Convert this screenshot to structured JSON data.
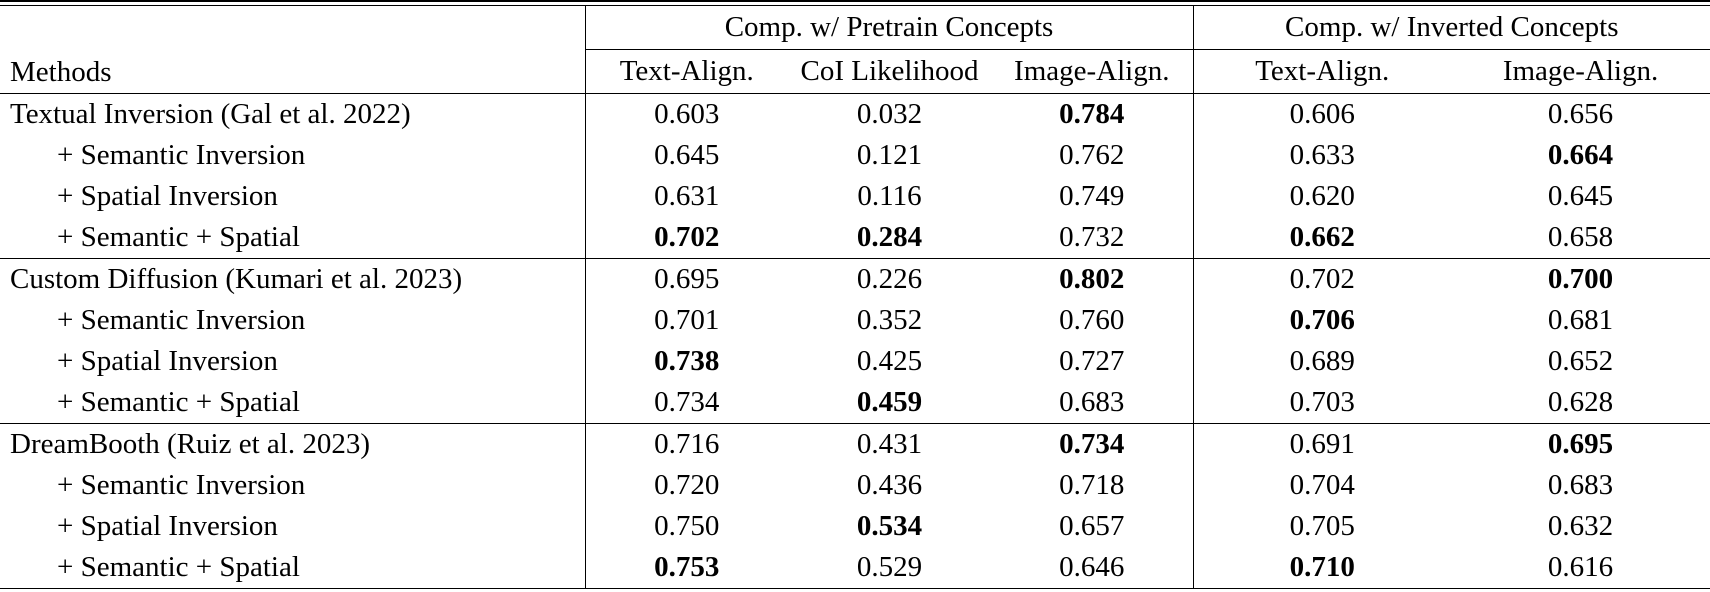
{
  "table": {
    "header": {
      "methods_label": "Methods",
      "groups": [
        {
          "label": "Comp. w/ Pretrain Concepts",
          "columns": [
            "Text-Align.",
            "CoI Likelihood",
            "Image-Align."
          ]
        },
        {
          "label": "Comp. w/ Inverted Concepts",
          "columns": [
            "Text-Align.",
            "Image-Align."
          ]
        }
      ]
    },
    "body": [
      {
        "rows": [
          {
            "method": "Textual Inversion (Gal et al. 2022)",
            "indent": false,
            "cells": [
              {
                "value": "0.603",
                "bold": false
              },
              {
                "value": "0.032",
                "bold": false
              },
              {
                "value": "0.784",
                "bold": true
              },
              {
                "value": "0.606",
                "bold": false
              },
              {
                "value": "0.656",
                "bold": false
              }
            ]
          },
          {
            "method": "+ Semantic Inversion",
            "indent": true,
            "cells": [
              {
                "value": "0.645",
                "bold": false
              },
              {
                "value": "0.121",
                "bold": false
              },
              {
                "value": "0.762",
                "bold": false
              },
              {
                "value": "0.633",
                "bold": false
              },
              {
                "value": "0.664",
                "bold": true
              }
            ]
          },
          {
            "method": "+ Spatial Inversion",
            "indent": true,
            "cells": [
              {
                "value": "0.631",
                "bold": false
              },
              {
                "value": "0.116",
                "bold": false
              },
              {
                "value": "0.749",
                "bold": false
              },
              {
                "value": "0.620",
                "bold": false
              },
              {
                "value": "0.645",
                "bold": false
              }
            ]
          },
          {
            "method": "+ Semantic + Spatial",
            "indent": true,
            "cells": [
              {
                "value": "0.702",
                "bold": true
              },
              {
                "value": "0.284",
                "bold": true
              },
              {
                "value": "0.732",
                "bold": false
              },
              {
                "value": "0.662",
                "bold": true
              },
              {
                "value": "0.658",
                "bold": false
              }
            ]
          }
        ]
      },
      {
        "rows": [
          {
            "method": "Custom Diffusion (Kumari et al. 2023)",
            "indent": false,
            "cells": [
              {
                "value": "0.695",
                "bold": false
              },
              {
                "value": "0.226",
                "bold": false
              },
              {
                "value": "0.802",
                "bold": true
              },
              {
                "value": "0.702",
                "bold": false
              },
              {
                "value": "0.700",
                "bold": true
              }
            ]
          },
          {
            "method": "+ Semantic Inversion",
            "indent": true,
            "cells": [
              {
                "value": "0.701",
                "bold": false
              },
              {
                "value": "0.352",
                "bold": false
              },
              {
                "value": "0.760",
                "bold": false
              },
              {
                "value": "0.706",
                "bold": true
              },
              {
                "value": "0.681",
                "bold": false
              }
            ]
          },
          {
            "method": "+ Spatial Inversion",
            "indent": true,
            "cells": [
              {
                "value": "0.738",
                "bold": true
              },
              {
                "value": "0.425",
                "bold": false
              },
              {
                "value": "0.727",
                "bold": false
              },
              {
                "value": "0.689",
                "bold": false
              },
              {
                "value": "0.652",
                "bold": false
              }
            ]
          },
          {
            "method": "+ Semantic + Spatial",
            "indent": true,
            "cells": [
              {
                "value": "0.734",
                "bold": false
              },
              {
                "value": "0.459",
                "bold": true
              },
              {
                "value": "0.683",
                "bold": false
              },
              {
                "value": "0.703",
                "bold": false
              },
              {
                "value": "0.628",
                "bold": false
              }
            ]
          }
        ]
      },
      {
        "rows": [
          {
            "method": "DreamBooth (Ruiz et al. 2023)",
            "indent": false,
            "cells": [
              {
                "value": "0.716",
                "bold": false
              },
              {
                "value": "0.431",
                "bold": false
              },
              {
                "value": "0.734",
                "bold": true
              },
              {
                "value": "0.691",
                "bold": false
              },
              {
                "value": "0.695",
                "bold": true
              }
            ]
          },
          {
            "method": "+ Semantic Inversion",
            "indent": true,
            "cells": [
              {
                "value": "0.720",
                "bold": false
              },
              {
                "value": "0.436",
                "bold": false
              },
              {
                "value": "0.718",
                "bold": false
              },
              {
                "value": "0.704",
                "bold": false
              },
              {
                "value": "0.683",
                "bold": false
              }
            ]
          },
          {
            "method": "+ Spatial Inversion",
            "indent": true,
            "cells": [
              {
                "value": "0.750",
                "bold": false
              },
              {
                "value": "0.534",
                "bold": true
              },
              {
                "value": "0.657",
                "bold": false
              },
              {
                "value": "0.705",
                "bold": false
              },
              {
                "value": "0.632",
                "bold": false
              }
            ]
          },
          {
            "method": "+ Semantic + Spatial",
            "indent": true,
            "cells": [
              {
                "value": "0.753",
                "bold": true
              },
              {
                "value": "0.529",
                "bold": false
              },
              {
                "value": "0.646",
                "bold": false
              },
              {
                "value": "0.710",
                "bold": true
              },
              {
                "value": "0.616",
                "bold": false
              }
            ]
          }
        ]
      }
    ]
  }
}
